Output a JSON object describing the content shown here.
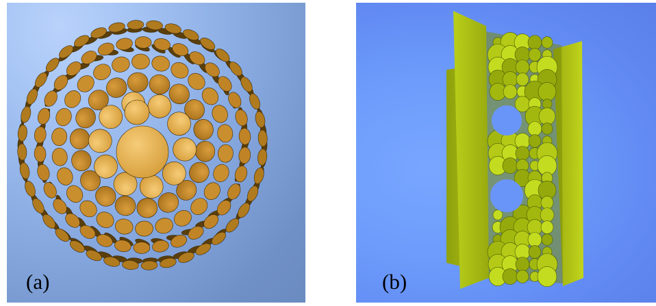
{
  "figure": {
    "panels": [
      {
        "label": "(a)",
        "colors": {
          "background": "#8fb0e6",
          "disk_light": "#f0b85a",
          "disk_dark": "#5a3f0c"
        }
      },
      {
        "label": "(b)",
        "colors": {
          "background": "#6a95f8",
          "disk_light": "#c9e81c",
          "disk_dark": "#6d7a05"
        }
      }
    ]
  }
}
